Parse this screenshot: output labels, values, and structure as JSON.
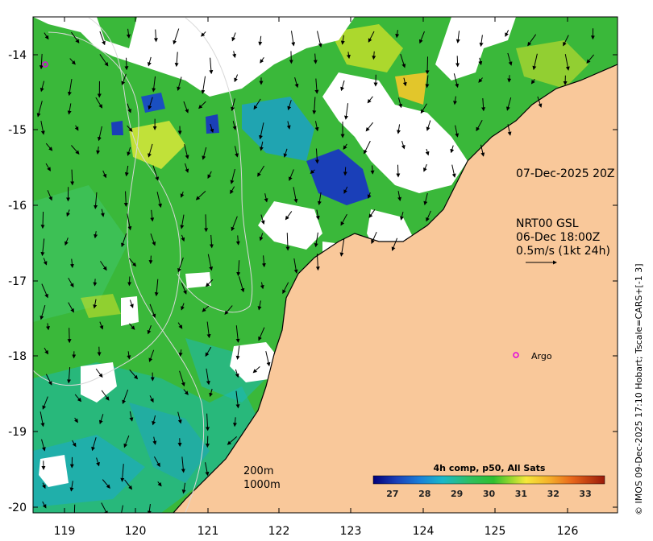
{
  "map": {
    "timestamp_label": "07-Dec-2025 20Z",
    "current_model": {
      "name": "NRT00 GSL",
      "time": "06-Dec 18:00Z",
      "scale_label": "0.5m/s (1kt 24h)"
    },
    "argo_label": "Argo",
    "depth_contours": [
      "200m",
      "1000m"
    ],
    "x_ticks": [
      "119",
      "120",
      "121",
      "122",
      "123",
      "124",
      "125",
      "126"
    ],
    "y_ticks": [
      "-14",
      "-15",
      "-16",
      "-17",
      "-18",
      "-19",
      "-20"
    ],
    "colorbar": {
      "title": "4h comp, p50, All Sats",
      "ticks": [
        "27",
        "28",
        "29",
        "30",
        "31",
        "32",
        "33"
      ],
      "min": 26.4,
      "max": 33.6
    },
    "credit": "© IMOS 09-Dec-2025 17:10 Hobart; Tscale=CARS+[-1 3]",
    "colors": {
      "land": "#f9c89a",
      "cloud": "#ffffff",
      "warm": "#f5e83a",
      "mid": "#2fbf2f",
      "cool": "#1aa9c9",
      "cold": "#1a3fb8"
    }
  }
}
